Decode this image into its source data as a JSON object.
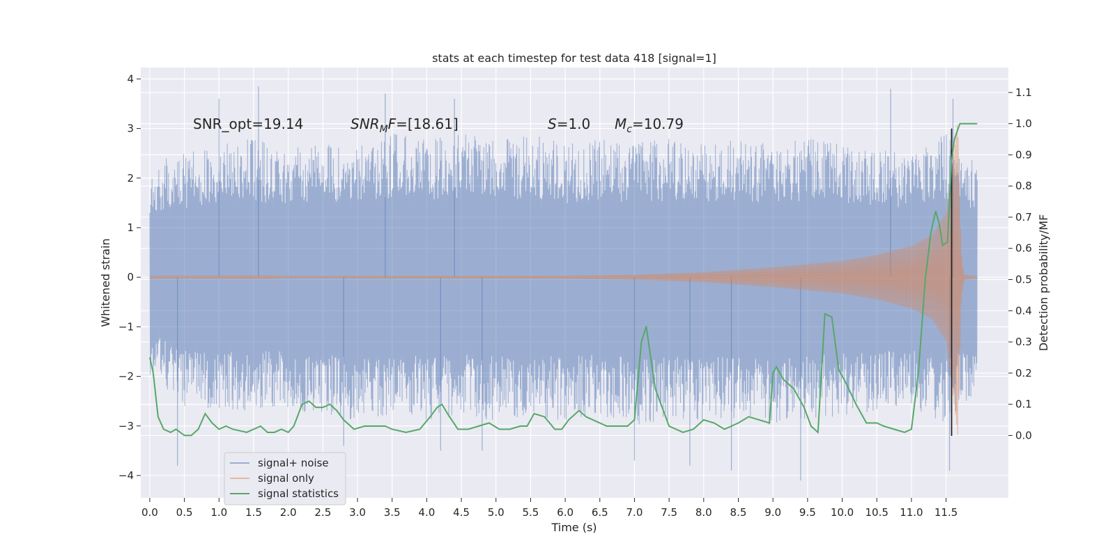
{
  "chart_data": {
    "type": "line",
    "title": "stats at each timestep for test data 418 [signal=1]",
    "xlabel": "Time (s)",
    "ylabel_left": "Whitened strain",
    "ylabel_right": "Detection probability/MF",
    "xlim": [
      -0.13,
      12.4
    ],
    "ylim_left": [
      -4.45,
      4.23
    ],
    "ylim_right": [
      -0.2,
      1.18
    ],
    "x_ticks": [
      0.0,
      0.5,
      1.0,
      1.5,
      2.0,
      2.5,
      3.0,
      3.5,
      4.0,
      4.5,
      5.0,
      5.5,
      6.0,
      6.5,
      7.0,
      7.5,
      8.0,
      8.5,
      9.0,
      9.5,
      10.0,
      10.5,
      11.0,
      11.5
    ],
    "x_tick_labels": [
      "0.0",
      "0.5",
      "1.0",
      "1.5",
      "2.0",
      "2.5",
      "3.0",
      "3.5",
      "4.0",
      "4.5",
      "5.0",
      "5.5",
      "6.0",
      "6.5",
      "7.0",
      "7.5",
      "8.0",
      "8.5",
      "9.0",
      "9.5",
      "10.0",
      "10.5",
      "11.0",
      "11.5"
    ],
    "y_left_ticks": [
      -4,
      -3,
      -2,
      -1,
      0,
      1,
      2,
      3,
      4
    ],
    "y_left_tick_labels": [
      "−4",
      "−3",
      "−2",
      "−1",
      "0",
      "1",
      "2",
      "3",
      "4"
    ],
    "y_right_ticks": [
      0.0,
      0.1,
      0.2,
      0.3,
      0.4,
      0.5,
      0.6,
      0.7,
      0.8,
      0.9,
      1.0,
      1.1
    ],
    "y_right_tick_labels": [
      "0.0",
      "0.1",
      "0.2",
      "0.3",
      "0.4",
      "0.5",
      "0.6",
      "0.7",
      "0.8",
      "0.9",
      "1.0",
      "1.1"
    ],
    "annotations": {
      "snr_opt": "SNR_opt=19.14",
      "snr_mf_sym": "SNR",
      "snr_mf_sub": "M",
      "snr_mf_sym2": "F",
      "snr_mf_val": "=[18.61]",
      "s_sym": "S",
      "s_val": "=1.0",
      "mc_sym": "M",
      "mc_sub": "c",
      "mc_val": "=10.79"
    },
    "vline_x": 11.58,
    "series": [
      {
        "name": "signal+ noise",
        "color": "#4c72b0",
        "t_start": 0.0,
        "t_end": 11.95,
        "envelope_upper": [
          [
            0.0,
            2.3
          ],
          [
            0.5,
            2.5
          ],
          [
            1.0,
            2.7
          ],
          [
            1.5,
            2.8
          ],
          [
            2.0,
            2.6
          ],
          [
            2.5,
            2.7
          ],
          [
            3.0,
            2.8
          ],
          [
            3.5,
            2.9
          ],
          [
            4.0,
            2.8
          ],
          [
            4.5,
            2.9
          ],
          [
            5.0,
            2.8
          ],
          [
            5.5,
            2.9
          ],
          [
            6.0,
            2.7
          ],
          [
            6.5,
            2.8
          ],
          [
            7.0,
            2.7
          ],
          [
            7.5,
            2.8
          ],
          [
            8.0,
            2.7
          ],
          [
            8.5,
            2.8
          ],
          [
            9.0,
            2.7
          ],
          [
            9.5,
            2.8
          ],
          [
            10.0,
            2.7
          ],
          [
            10.5,
            2.6
          ],
          [
            11.0,
            2.5
          ],
          [
            11.5,
            2.9
          ],
          [
            11.95,
            2.4
          ]
        ],
        "envelope_lower": [
          [
            0.0,
            -2.0
          ],
          [
            0.5,
            -2.6
          ],
          [
            1.0,
            -2.7
          ],
          [
            1.5,
            -2.7
          ],
          [
            2.0,
            -2.7
          ],
          [
            2.5,
            -2.8
          ],
          [
            3.0,
            -2.9
          ],
          [
            3.5,
            -2.8
          ],
          [
            4.0,
            -2.9
          ],
          [
            4.5,
            -2.8
          ],
          [
            5.0,
            -2.9
          ],
          [
            5.5,
            -2.8
          ],
          [
            6.0,
            -2.9
          ],
          [
            6.5,
            -2.8
          ],
          [
            7.0,
            -3.0
          ],
          [
            7.5,
            -2.9
          ],
          [
            8.0,
            -2.9
          ],
          [
            8.5,
            -2.9
          ],
          [
            9.0,
            -3.0
          ],
          [
            9.5,
            -2.9
          ],
          [
            10.0,
            -2.8
          ],
          [
            10.5,
            -2.7
          ],
          [
            11.0,
            -2.6
          ],
          [
            11.5,
            -3.0
          ],
          [
            11.95,
            -2.3
          ]
        ],
        "spikes": [
          [
            1.0,
            3.6
          ],
          [
            1.57,
            3.85
          ],
          [
            3.4,
            3.7
          ],
          [
            4.4,
            3.6
          ],
          [
            10.7,
            3.8
          ],
          [
            11.6,
            3.6
          ],
          [
            0.4,
            -3.8
          ],
          [
            2.8,
            -3.4
          ],
          [
            4.2,
            -3.5
          ],
          [
            4.8,
            -3.5
          ],
          [
            7.0,
            -3.7
          ],
          [
            7.8,
            -3.8
          ],
          [
            8.4,
            -3.9
          ],
          [
            9.4,
            -4.1
          ],
          [
            11.55,
            -3.9
          ]
        ]
      },
      {
        "name": "signal only",
        "color": "#dd8452",
        "envelope": [
          [
            0.0,
            0.02
          ],
          [
            6.0,
            0.03
          ],
          [
            7.0,
            0.05
          ],
          [
            8.0,
            0.1
          ],
          [
            9.0,
            0.2
          ],
          [
            10.0,
            0.33
          ],
          [
            10.5,
            0.45
          ],
          [
            11.0,
            0.63
          ],
          [
            11.3,
            0.85
          ],
          [
            11.5,
            1.3
          ],
          [
            11.62,
            2.6
          ],
          [
            11.67,
            3.2
          ],
          [
            11.72,
            0.5
          ],
          [
            11.76,
            0.05
          ],
          [
            11.95,
            0.02
          ]
        ]
      },
      {
        "name": "signal statistics",
        "color": "#55a868",
        "x": [
          0.0,
          0.05,
          0.12,
          0.2,
          0.3,
          0.38,
          0.5,
          0.6,
          0.7,
          0.8,
          0.9,
          1.0,
          1.1,
          1.2,
          1.4,
          1.6,
          1.7,
          1.8,
          1.9,
          2.0,
          2.08,
          2.2,
          2.3,
          2.4,
          2.5,
          2.6,
          2.7,
          2.8,
          2.95,
          3.1,
          3.25,
          3.4,
          3.5,
          3.7,
          3.9,
          4.05,
          4.15,
          4.22,
          4.3,
          4.45,
          4.6,
          4.75,
          4.9,
          5.05,
          5.2,
          5.35,
          5.45,
          5.55,
          5.7,
          5.85,
          5.95,
          6.05,
          6.2,
          6.3,
          6.4,
          6.6,
          6.75,
          6.9,
          7.0,
          7.1,
          7.17,
          7.3,
          7.5,
          7.7,
          7.85,
          8.0,
          8.15,
          8.3,
          8.5,
          8.65,
          8.8,
          8.95,
          9.0,
          9.05,
          9.15,
          9.3,
          9.45,
          9.55,
          9.65,
          9.75,
          9.85,
          9.95,
          10.05,
          10.2,
          10.35,
          10.5,
          10.6,
          10.75,
          10.9,
          11.0,
          11.1,
          11.15,
          11.2,
          11.28,
          11.35,
          11.4,
          11.45,
          11.52,
          11.58,
          11.62,
          11.7,
          11.8,
          11.9,
          11.95
        ],
        "y": [
          0.25,
          0.2,
          0.06,
          0.02,
          0.01,
          0.02,
          0.0,
          0.0,
          0.02,
          0.07,
          0.04,
          0.02,
          0.03,
          0.02,
          0.01,
          0.03,
          0.01,
          0.01,
          0.02,
          0.01,
          0.03,
          0.1,
          0.11,
          0.09,
          0.09,
          0.1,
          0.08,
          0.05,
          0.02,
          0.03,
          0.03,
          0.03,
          0.02,
          0.01,
          0.02,
          0.06,
          0.09,
          0.1,
          0.07,
          0.02,
          0.02,
          0.03,
          0.04,
          0.02,
          0.02,
          0.03,
          0.03,
          0.07,
          0.06,
          0.02,
          0.02,
          0.05,
          0.08,
          0.06,
          0.05,
          0.03,
          0.03,
          0.03,
          0.05,
          0.3,
          0.35,
          0.15,
          0.03,
          0.01,
          0.02,
          0.05,
          0.04,
          0.02,
          0.04,
          0.06,
          0.05,
          0.04,
          0.2,
          0.22,
          0.18,
          0.15,
          0.09,
          0.03,
          0.01,
          0.39,
          0.38,
          0.21,
          0.17,
          0.1,
          0.04,
          0.04,
          0.03,
          0.02,
          0.01,
          0.02,
          0.2,
          0.35,
          0.5,
          0.65,
          0.72,
          0.68,
          0.61,
          0.62,
          0.88,
          0.95,
          1.0,
          1.0,
          1.0,
          1.0
        ]
      }
    ],
    "legend": [
      "signal+ noise",
      "signal only",
      "signal statistics"
    ]
  }
}
